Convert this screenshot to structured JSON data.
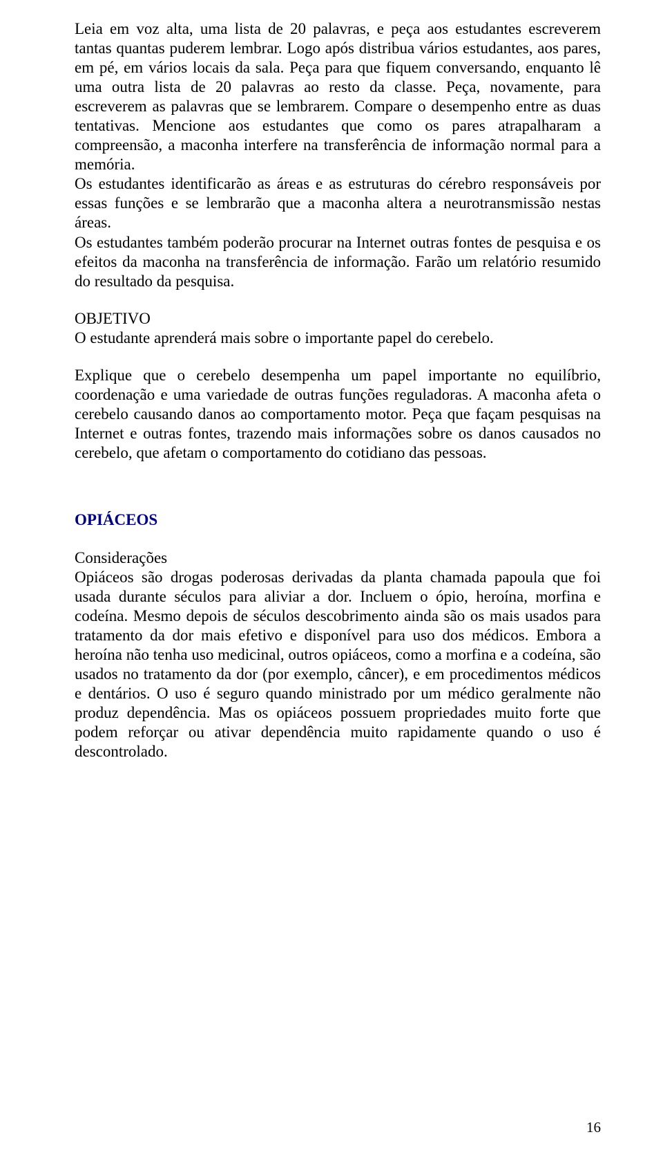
{
  "colors": {
    "text": "#000000",
    "section_title": "#00007f",
    "background": "#ffffff"
  },
  "typography": {
    "body_fontsize_pt": 17,
    "body_family": "Times New Roman",
    "line_height": 1.22,
    "section_title_weight": "bold"
  },
  "paragraphs": {
    "p1": "Leia em voz alta, uma lista de 20 palavras, e peça aos estudantes escreverem tantas quantas puderem lembrar. Logo após distribua vários estudantes, aos pares, em pé, em vários locais da sala. Peça para que fiquem conversando, enquanto lê uma outra lista de 20 palavras ao resto da classe. Peça, novamente, para escreverem as palavras que se lembrarem. Compare o desempenho entre as duas tentativas. Mencione aos estudantes que como os pares atrapalharam a compreensão, a maconha interfere na transferência de informação normal para a memória.",
    "p2": "Os estudantes identificarão as áreas e as estruturas do cérebro responsáveis por essas funções e se lembrarão que a maconha altera a neurotransmissão nestas áreas.",
    "p3": "Os estudantes também poderão procurar na Internet outras fontes de pesquisa e os efeitos da maconha na transferência de informação. Farão um relatório resumido do resultado da pesquisa.",
    "objetivo_label": "OBJETIVO",
    "objetivo_text": "O estudante aprenderá mais sobre o importante papel do cerebelo.",
    "p4": "Explique que o cerebelo desempenha um papel importante no equilíbrio, coordenação e uma variedade de outras funções reguladoras. A maconha afeta o cerebelo causando danos ao comportamento motor. Peça que façam pesquisas na Internet e outras fontes, trazendo mais informações sobre os danos causados no cerebelo, que afetam o comportamento do cotidiano das pessoas.",
    "section_title": "OPIÁCEOS",
    "consideracoes_label": "Considerações",
    "p5": "Opiáceos são drogas poderosas derivadas da planta chamada papoula que foi usada durante séculos para aliviar a dor. Incluem o ópio, heroína, morfina e codeína. Mesmo depois de séculos descobrimento ainda são os mais usados para tratamento da dor mais efetivo e disponível para uso dos médicos. Embora a heroína não tenha uso medicinal, outros opiáceos, como a morfina e a codeína, são usados no tratamento da dor (por exemplo, câncer), e em procedimentos médicos e dentários. O uso é seguro quando ministrado por um médico geralmente não produz dependência. Mas os opiáceos possuem propriedades muito forte que podem reforçar ou ativar dependência muito rapidamente quando o uso é descontrolado."
  },
  "page_number": "16"
}
